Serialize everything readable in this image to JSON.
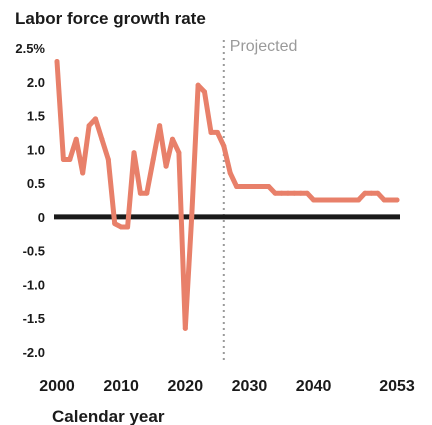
{
  "chart_data": {
    "type": "line",
    "title": "Labor force growth rate",
    "xlabel": "Calendar year",
    "ylabel": "",
    "xlim": [
      2000,
      2053
    ],
    "ylim": [
      -2.0,
      2.5
    ],
    "y_ticks": [
      {
        "value": 2.5,
        "label": "2.5%"
      },
      {
        "value": 2.0,
        "label": "2.0"
      },
      {
        "value": 1.5,
        "label": "1.5"
      },
      {
        "value": 1.0,
        "label": "1.0"
      },
      {
        "value": 0.5,
        "label": "0.5"
      },
      {
        "value": 0,
        "label": "0"
      },
      {
        "value": -0.5,
        "label": "-0.5"
      },
      {
        "value": -1.0,
        "label": "-1.0"
      },
      {
        "value": -1.5,
        "label": "-1.5"
      },
      {
        "value": -2.0,
        "label": "-2.0"
      }
    ],
    "x_ticks": [
      {
        "value": 2000,
        "label": "2000"
      },
      {
        "value": 2010,
        "label": "2010"
      },
      {
        "value": 2020,
        "label": "2020"
      },
      {
        "value": 2030,
        "label": "2030"
      },
      {
        "value": 2040,
        "label": "2040"
      },
      {
        "value": 2053,
        "label": "2053"
      }
    ],
    "grid": false,
    "legend": "none",
    "projection": {
      "x": 2026,
      "label": "Projected"
    },
    "series": [
      {
        "color": "#e8806a",
        "x": [
          2000,
          2001,
          2002,
          2003,
          2004,
          2005,
          2006,
          2007,
          2008,
          2009,
          2010,
          2011,
          2012,
          2013,
          2014,
          2015,
          2016,
          2017,
          2018,
          2019,
          2020,
          2021,
          2022,
          2023,
          2024,
          2025,
          2026,
          2027,
          2028,
          2029,
          2030,
          2031,
          2032,
          2033,
          2034,
          2035,
          2036,
          2037,
          2038,
          2039,
          2040,
          2041,
          2042,
          2043,
          2044,
          2045,
          2046,
          2047,
          2048,
          2049,
          2050,
          2051,
          2052,
          2053
        ],
        "values": [
          2.3,
          0.85,
          0.85,
          1.15,
          0.65,
          1.35,
          1.45,
          1.15,
          0.85,
          -0.1,
          -0.15,
          -0.15,
          0.95,
          0.35,
          0.35,
          0.85,
          1.35,
          0.75,
          1.15,
          0.95,
          -1.65,
          0.0,
          1.95,
          1.85,
          1.25,
          1.25,
          1.05,
          0.65,
          0.45,
          0.45,
          0.45,
          0.45,
          0.45,
          0.45,
          0.35,
          0.35,
          0.35,
          0.35,
          0.35,
          0.35,
          0.25,
          0.25,
          0.25,
          0.25,
          0.25,
          0.25,
          0.25,
          0.25,
          0.35,
          0.35,
          0.35,
          0.25,
          0.25,
          0.25
        ]
      }
    ],
    "zero_line_color": "#1a1a1a"
  }
}
